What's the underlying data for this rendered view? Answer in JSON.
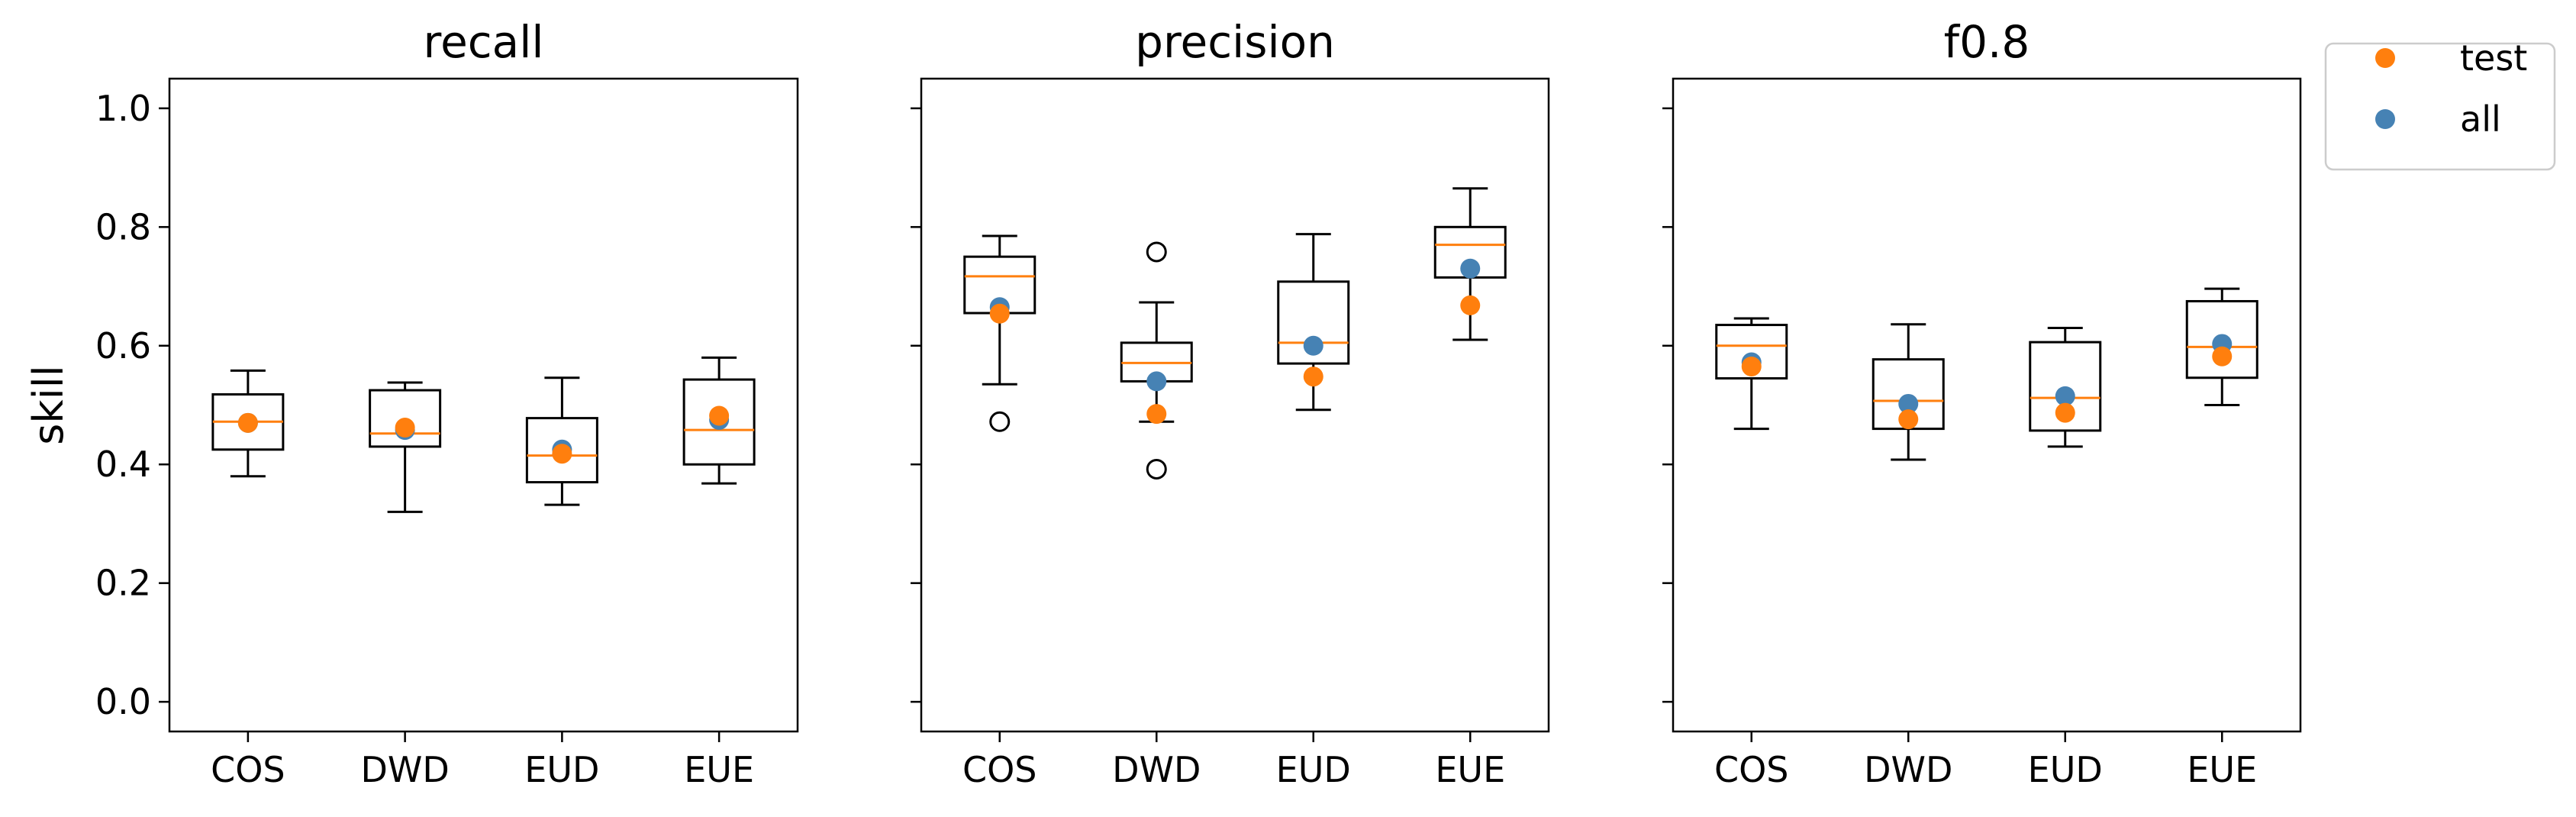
{
  "colors": {
    "test": "#ff7f0e",
    "all": "#4682b4",
    "median": "#ff7f0e",
    "box": "#000000"
  },
  "chart_data": {
    "type": "box",
    "ylabel": "skill",
    "ylim": [
      -0.05,
      1.05
    ],
    "yticks": [
      0.0,
      0.2,
      0.4,
      0.6,
      0.8,
      1.0
    ],
    "ytick_labels": [
      "0.0",
      "0.2",
      "0.4",
      "0.6",
      "0.8",
      "1.0"
    ],
    "categories": [
      "COS",
      "DWD",
      "EUD",
      "EUE"
    ],
    "legend": {
      "position": "outside-right-top",
      "entries": [
        {
          "key": "test",
          "label": "test"
        },
        {
          "key": "all",
          "label": "all"
        }
      ]
    },
    "panels": [
      {
        "title": "recall",
        "boxes": [
          {
            "category": "COS",
            "whisker_low": 0.38,
            "q1": 0.425,
            "median": 0.472,
            "q3": 0.518,
            "whisker_high": 0.558,
            "outliers": [],
            "test": 0.47,
            "all": 0.47
          },
          {
            "category": "DWD",
            "whisker_low": 0.32,
            "q1": 0.43,
            "median": 0.452,
            "q3": 0.525,
            "whisker_high": 0.538,
            "outliers": [],
            "test": 0.462,
            "all": 0.458
          },
          {
            "category": "EUD",
            "whisker_low": 0.332,
            "q1": 0.37,
            "median": 0.415,
            "q3": 0.478,
            "whisker_high": 0.546,
            "outliers": [],
            "test": 0.418,
            "all": 0.425
          },
          {
            "category": "EUE",
            "whisker_low": 0.368,
            "q1": 0.4,
            "median": 0.458,
            "q3": 0.543,
            "whisker_high": 0.58,
            "outliers": [],
            "test": 0.482,
            "all": 0.475
          }
        ]
      },
      {
        "title": "precision",
        "boxes": [
          {
            "category": "COS",
            "whisker_low": 0.535,
            "q1": 0.655,
            "median": 0.717,
            "q3": 0.75,
            "whisker_high": 0.785,
            "outliers": [
              0.472
            ],
            "test": 0.654,
            "all": 0.665
          },
          {
            "category": "DWD",
            "whisker_low": 0.472,
            "q1": 0.54,
            "median": 0.571,
            "q3": 0.605,
            "whisker_high": 0.673,
            "outliers": [
              0.392,
              0.758
            ],
            "test": 0.485,
            "all": 0.54
          },
          {
            "category": "EUD",
            "whisker_low": 0.492,
            "q1": 0.57,
            "median": 0.605,
            "q3": 0.708,
            "whisker_high": 0.788,
            "outliers": [],
            "test": 0.548,
            "all": 0.6
          },
          {
            "category": "EUE",
            "whisker_low": 0.61,
            "q1": 0.715,
            "median": 0.77,
            "q3": 0.8,
            "whisker_high": 0.865,
            "outliers": [],
            "test": 0.668,
            "all": 0.73
          }
        ]
      },
      {
        "title": "f0.8",
        "boxes": [
          {
            "category": "COS",
            "whisker_low": 0.46,
            "q1": 0.545,
            "median": 0.6,
            "q3": 0.635,
            "whisker_high": 0.646,
            "outliers": [],
            "test": 0.565,
            "all": 0.572
          },
          {
            "category": "DWD",
            "whisker_low": 0.408,
            "q1": 0.46,
            "median": 0.507,
            "q3": 0.577,
            "whisker_high": 0.636,
            "outliers": [],
            "test": 0.476,
            "all": 0.502
          },
          {
            "category": "EUD",
            "whisker_low": 0.43,
            "q1": 0.457,
            "median": 0.512,
            "q3": 0.606,
            "whisker_high": 0.63,
            "outliers": [],
            "test": 0.487,
            "all": 0.515
          },
          {
            "category": "EUE",
            "whisker_low": 0.5,
            "q1": 0.546,
            "median": 0.598,
            "q3": 0.675,
            "whisker_high": 0.696,
            "outliers": [],
            "test": 0.582,
            "all": 0.603
          }
        ]
      }
    ]
  }
}
